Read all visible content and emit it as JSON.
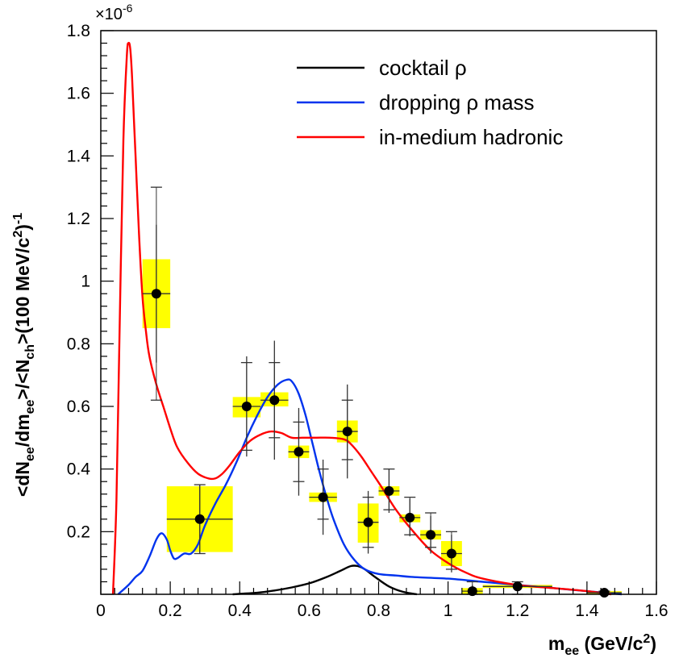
{
  "chart_data": {
    "type": "line",
    "title": "",
    "xlabel": {
      "main": "m",
      "sub": "ee",
      "unit_open": " (GeV/c",
      "unit_sup": "2",
      "unit_close": ")"
    },
    "ylabel": {
      "parts": [
        {
          "t": "<dN",
          "s": "n"
        },
        {
          "t": "ee",
          "s": "sub"
        },
        {
          "t": "/dm",
          "s": "n"
        },
        {
          "t": "ee",
          "s": "sub"
        },
        {
          "t": ">/<N",
          "s": "n"
        },
        {
          "t": "ch",
          "s": "sub"
        },
        {
          "t": ">(100 MeV/c",
          "s": "n"
        },
        {
          "t": "2",
          "s": "sup"
        },
        {
          "t": ")",
          "s": "n"
        },
        {
          "t": "-1",
          "s": "sup"
        }
      ]
    },
    "y_exponent": {
      "base": "×10",
      "exp": "-6"
    },
    "xlim": [
      0,
      1.6
    ],
    "ylim": [
      0,
      1.8
    ],
    "x_ticks": [
      "0",
      "0.2",
      "0.4",
      "0.6",
      "0.8",
      "1",
      "1.2",
      "1.4",
      "1.6"
    ],
    "y_ticks": [
      "0.2",
      "0.4",
      "0.6",
      "0.8",
      "1",
      "1.2",
      "1.4",
      "1.6",
      "1.8"
    ],
    "x_tick_values": [
      0,
      0.2,
      0.4,
      0.6,
      0.8,
      1.0,
      1.2,
      1.4,
      1.6
    ],
    "y_tick_values": [
      0.2,
      0.4,
      0.6,
      0.8,
      1.0,
      1.2,
      1.4,
      1.6,
      1.8
    ],
    "legend": [
      {
        "label": "cocktail ρ",
        "color": "#000000"
      },
      {
        "label": "dropping ρ mass",
        "color": "#0033ee"
      },
      {
        "label": "in-medium hadronic",
        "color": "#ff0000"
      }
    ],
    "series": [
      {
        "name": "cocktail ρ",
        "color": "#000000",
        "x": [
          0.38,
          0.45,
          0.5,
          0.55,
          0.6,
          0.65,
          0.69,
          0.72,
          0.74,
          0.76,
          0.79,
          0.83,
          0.87,
          0.91
        ],
        "y": [
          0.0,
          0.005,
          0.012,
          0.022,
          0.035,
          0.055,
          0.075,
          0.09,
          0.09,
          0.08,
          0.055,
          0.025,
          0.008,
          0.0
        ]
      },
      {
        "name": "dropping ρ mass",
        "color": "#0033ee",
        "x": [
          0.05,
          0.08,
          0.1,
          0.12,
          0.14,
          0.16,
          0.175,
          0.19,
          0.2,
          0.21,
          0.22,
          0.24,
          0.26,
          0.28,
          0.3,
          0.33,
          0.36,
          0.39,
          0.42,
          0.45,
          0.48,
          0.51,
          0.535,
          0.55,
          0.57,
          0.59,
          0.61,
          0.63,
          0.65,
          0.67,
          0.7,
          0.73,
          0.76,
          0.8,
          0.85,
          0.9,
          1.0,
          1.1,
          1.2,
          1.3,
          1.4,
          1.5
        ],
        "y": [
          0.0,
          0.03,
          0.055,
          0.075,
          0.12,
          0.175,
          0.195,
          0.175,
          0.14,
          0.115,
          0.115,
          0.13,
          0.13,
          0.16,
          0.22,
          0.29,
          0.35,
          0.42,
          0.5,
          0.57,
          0.63,
          0.67,
          0.685,
          0.68,
          0.64,
          0.57,
          0.48,
          0.39,
          0.31,
          0.24,
          0.16,
          0.11,
          0.08,
          0.065,
          0.06,
          0.055,
          0.05,
          0.04,
          0.03,
          0.02,
          0.01,
          0.0
        ]
      },
      {
        "name": "in-medium hadronic",
        "color": "#ff0000",
        "x": [
          0.035,
          0.045,
          0.055,
          0.065,
          0.075,
          0.08,
          0.085,
          0.09,
          0.1,
          0.11,
          0.12,
          0.13,
          0.14,
          0.16,
          0.18,
          0.2,
          0.22,
          0.25,
          0.28,
          0.31,
          0.33,
          0.35,
          0.37,
          0.4,
          0.43,
          0.46,
          0.49,
          0.52,
          0.55,
          0.58,
          0.62,
          0.66,
          0.7,
          0.72,
          0.75,
          0.78,
          0.81,
          0.85,
          0.9,
          0.95,
          1.0,
          1.05,
          1.1,
          1.2,
          1.3,
          1.4,
          1.47
        ],
        "y": [
          0.0,
          0.3,
          0.9,
          1.45,
          1.72,
          1.76,
          1.74,
          1.65,
          1.4,
          1.15,
          0.95,
          0.84,
          0.76,
          0.67,
          0.6,
          0.53,
          0.47,
          0.42,
          0.385,
          0.37,
          0.37,
          0.385,
          0.41,
          0.455,
          0.49,
          0.51,
          0.52,
          0.515,
          0.5,
          0.5,
          0.5,
          0.5,
          0.495,
          0.48,
          0.44,
          0.39,
          0.34,
          0.27,
          0.2,
          0.14,
          0.1,
          0.07,
          0.05,
          0.03,
          0.02,
          0.01,
          0.0
        ]
      }
    ],
    "data_points": [
      {
        "x": 0.16,
        "y": 0.96,
        "xerr": 0.04,
        "stat": 0.22,
        "sys_lo": 0.85,
        "sys_hi": 1.07,
        "tick_lo": 0.62,
        "tick_hi": 1.3
      },
      {
        "x": 0.285,
        "y": 0.24,
        "xerr": 0.095,
        "stat": 0.11,
        "sys_lo": 0.135,
        "sys_hi": 0.345,
        "tick_lo": 0.13,
        "tick_hi": 0.35
      },
      {
        "x": 0.42,
        "y": 0.6,
        "xerr": 0.04,
        "stat": 0.16,
        "sys_lo": 0.565,
        "sys_hi": 0.63,
        "tick_lo": 0.46,
        "tick_hi": 0.74
      },
      {
        "x": 0.5,
        "y": 0.62,
        "xerr": 0.04,
        "stat": 0.19,
        "sys_lo": 0.6,
        "sys_hi": 0.645,
        "tick_lo": 0.5,
        "tick_hi": 0.74
      },
      {
        "x": 0.57,
        "y": 0.455,
        "xerr": 0.03,
        "stat": 0.14,
        "sys_lo": 0.435,
        "sys_hi": 0.475,
        "tick_lo": 0.36,
        "tick_hi": 0.55
      },
      {
        "x": 0.64,
        "y": 0.31,
        "xerr": 0.04,
        "stat": 0.12,
        "sys_lo": 0.295,
        "sys_hi": 0.325,
        "tick_lo": 0.24,
        "tick_hi": 0.4
      },
      {
        "x": 0.71,
        "y": 0.52,
        "xerr": 0.03,
        "stat": 0.15,
        "sys_lo": 0.485,
        "sys_hi": 0.555,
        "tick_lo": 0.43,
        "tick_hi": 0.62
      },
      {
        "x": 0.77,
        "y": 0.23,
        "xerr": 0.03,
        "stat": 0.1,
        "sys_lo": 0.165,
        "sys_hi": 0.29,
        "tick_lo": 0.15,
        "tick_hi": 0.31
      },
      {
        "x": 0.83,
        "y": 0.33,
        "xerr": 0.03,
        "stat": 0.07,
        "sys_lo": 0.315,
        "sys_hi": 0.345,
        "tick_lo": 0.27,
        "tick_hi": 0.4
      },
      {
        "x": 0.89,
        "y": 0.245,
        "xerr": 0.03,
        "stat": 0.06,
        "sys_lo": 0.23,
        "sys_hi": 0.255,
        "tick_lo": 0.19,
        "tick_hi": 0.31
      },
      {
        "x": 0.95,
        "y": 0.19,
        "xerr": 0.03,
        "stat": 0.06,
        "sys_lo": 0.175,
        "sys_hi": 0.205,
        "tick_lo": 0.15,
        "tick_hi": 0.26
      },
      {
        "x": 1.01,
        "y": 0.13,
        "xerr": 0.03,
        "stat": 0.06,
        "sys_lo": 0.09,
        "sys_hi": 0.17,
        "tick_lo": 0.08,
        "tick_hi": 0.2
      },
      {
        "x": 1.07,
        "y": 0.01,
        "xerr": 0.03,
        "stat": 0.02,
        "sys_lo": 0.0,
        "sys_hi": 0.02,
        "tick_lo": 0.0,
        "tick_hi": 0.04
      },
      {
        "x": 1.2,
        "y": 0.025,
        "xerr": 0.1,
        "stat": 0.012,
        "sys_lo": 0.02,
        "sys_hi": 0.03,
        "tick_lo": 0.0,
        "tick_hi": 0.04
      },
      {
        "x": 1.45,
        "y": 0.005,
        "xerr": 0.05,
        "stat": 0.005,
        "sys_lo": 0.0,
        "sys_hi": 0.01,
        "tick_lo": 0.0,
        "tick_hi": 0.01
      }
    ],
    "styles": {
      "sys_box_color": "#ffff00",
      "marker_color": "#000000",
      "errbar_color": "#333333"
    }
  }
}
